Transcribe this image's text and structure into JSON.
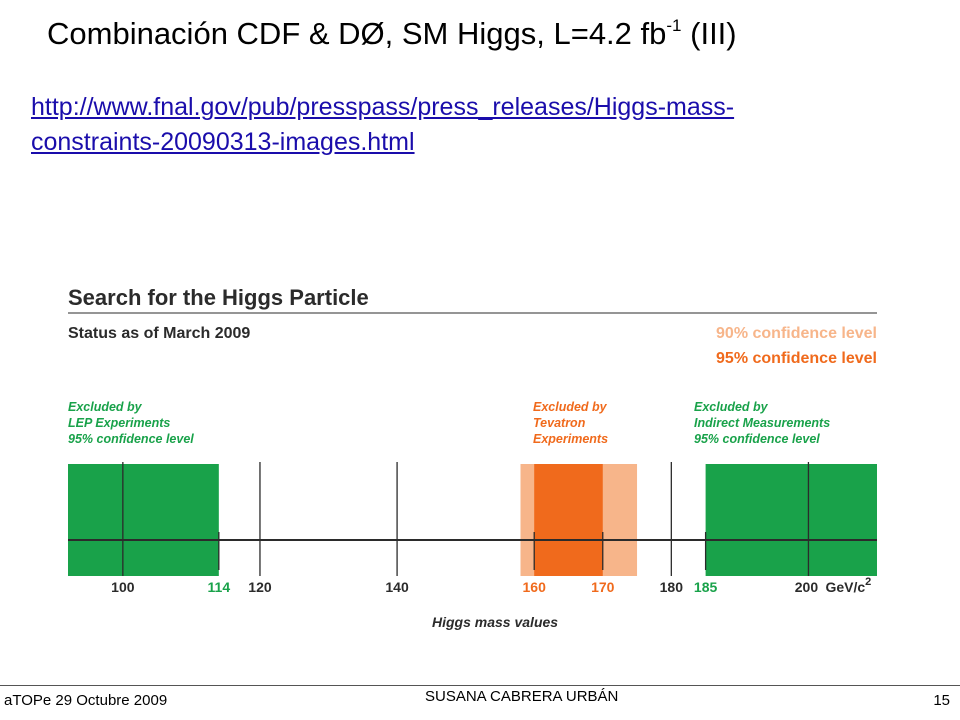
{
  "slide": {
    "title": "Combinación CDF & DØ, SM Higgs, L=4.2 fb",
    "title_sup": "-1",
    "title_tail": " (III)",
    "link_line1": "http://www.fnal.gov/pub/presspass/press_releases/Higgs-mass-",
    "link_line2": "constraints-20090313-images.html"
  },
  "figure": {
    "title": "Search for the Higgs Particle",
    "subtitle": "Status as of March 2009",
    "legend_90": "90% confidence level",
    "legend_95": "95% confidence level",
    "note_lep": [
      "Excluded by",
      "LEP Experiments",
      "95% confidence level"
    ],
    "note_tevatron": [
      "Excluded by",
      "Tevatron",
      "Experiments"
    ],
    "note_indirect": [
      "Excluded by",
      "Indirect Measurements",
      "95% confidence level"
    ],
    "axis_title": "Higgs mass values",
    "unit_label": "GeV/c",
    "unit_sup": "2",
    "colors": {
      "green": "#19a24a",
      "orange_95": "#f06a1c",
      "orange_90": "#f7b58a",
      "line": "#2b2b2b"
    }
  },
  "chart_data": {
    "type": "range-diagram",
    "axis_range": [
      92,
      210
    ],
    "ticks": [
      {
        "value": 100,
        "label": "100",
        "style": "dark"
      },
      {
        "value": 114,
        "label": "114",
        "style": "green"
      },
      {
        "value": 120,
        "label": "120",
        "style": "dark"
      },
      {
        "value": 140,
        "label": "140",
        "style": "dark"
      },
      {
        "value": 160,
        "label": "160",
        "style": "orange"
      },
      {
        "value": 170,
        "label": "170",
        "style": "orange"
      },
      {
        "value": 180,
        "label": "180",
        "style": "dark"
      },
      {
        "value": 185,
        "label": "185",
        "style": "green"
      },
      {
        "value": 200,
        "label": "200",
        "style": "dark"
      }
    ],
    "tall_gridlines": [
      100,
      120,
      140,
      180,
      200
    ],
    "regions": [
      {
        "name": "LEP excluded (95% CL)",
        "from": 92,
        "to": 114,
        "color": "#19a24a"
      },
      {
        "name": "Tevatron excluded 90% CL",
        "from": 158,
        "to": 175,
        "color": "#f7b58a"
      },
      {
        "name": "Tevatron excluded 95% CL",
        "from": 160,
        "to": 170,
        "color": "#f06a1c"
      },
      {
        "name": "Indirect measurements excluded (95% CL)",
        "from": 185,
        "to": 210,
        "color": "#19a24a"
      }
    ]
  },
  "footer": {
    "left": "aTOPe 29 Octubre 2009",
    "center": "SUSANA CABRERA URBÁN",
    "right": "15"
  }
}
